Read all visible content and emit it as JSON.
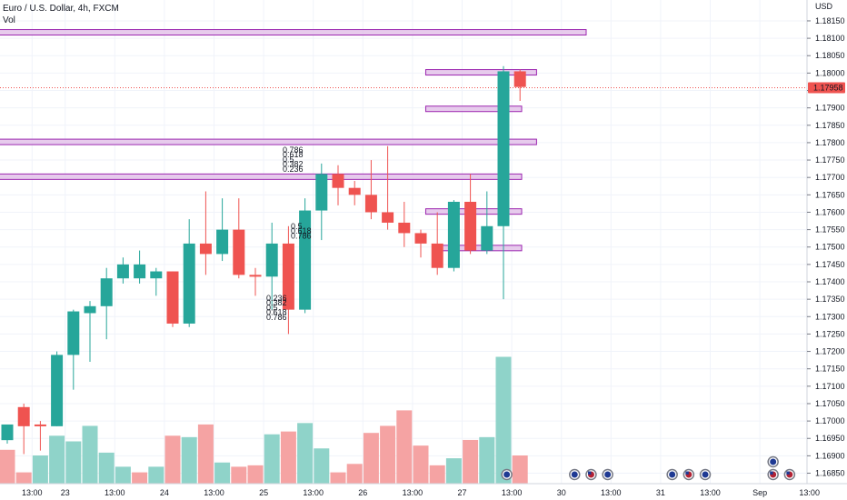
{
  "header": {
    "title": "Euro / U.S. Dollar, 4h, FXCM",
    "volume_label": "Vol"
  },
  "colors": {
    "up": "#26a69a",
    "down": "#ef5350",
    "vol_up": "#8fd3c9",
    "vol_down": "#f5a3a3",
    "zone_fill": "#e1bee7",
    "zone_stroke": "#9c27b0",
    "price_line": "#ef5350",
    "grid": "#f0f3fa",
    "label_bg": "#ef5350",
    "label_text": "#ffffff"
  },
  "chart_data": {
    "type": "candlestick",
    "symbol": "EURUSD",
    "timeframe": "4h",
    "source": "FXCM",
    "currency": "USD",
    "last_price": "1.17958",
    "ylim": [
      1.1682,
      1.1821
    ],
    "y_ticks": [
      "1.18150",
      "1.18100",
      "1.18050",
      "1.18000",
      "1.17950",
      "1.17900",
      "1.17850",
      "1.17800",
      "1.17750",
      "1.17700",
      "1.17650",
      "1.17600",
      "1.17550",
      "1.17500",
      "1.17450",
      "1.17400",
      "1.17350",
      "1.17300",
      "1.17250",
      "1.17200",
      "1.17150",
      "1.17100",
      "1.17050",
      "1.17000",
      "1.16950",
      "1.16900",
      "1.16850"
    ],
    "x_ticks": [
      {
        "label": "13:00",
        "i": 1.5
      },
      {
        "label": "23",
        "i": 3.5
      },
      {
        "label": "13:00",
        "i": 6.5
      },
      {
        "label": "24",
        "i": 9.5
      },
      {
        "label": "13:00",
        "i": 12.5
      },
      {
        "label": "25",
        "i": 15.5
      },
      {
        "label": "13:00",
        "i": 18.5
      },
      {
        "label": "26",
        "i": 21.5
      },
      {
        "label": "13:00",
        "i": 24.5
      },
      {
        "label": "27",
        "i": 27.5
      },
      {
        "label": "13:00",
        "i": 30.5
      },
      {
        "label": "30",
        "i": 33.5
      },
      {
        "label": "13:00",
        "i": 36.5
      },
      {
        "label": "31",
        "i": 39.5
      },
      {
        "label": "13:00",
        "i": 42.5
      },
      {
        "label": "Sep",
        "i": 45.5
      },
      {
        "label": "13:00",
        "i": 48.5
      }
    ],
    "candles": [
      {
        "o": 1.16945,
        "h": 1.16985,
        "l": 1.16935,
        "c": 1.1699
      },
      {
        "o": 1.1704,
        "h": 1.1705,
        "l": 1.16905,
        "c": 1.16985
      },
      {
        "o": 1.1699,
        "h": 1.17,
        "l": 1.16915,
        "c": 1.16985
      },
      {
        "o": 1.16985,
        "h": 1.172,
        "l": 1.16985,
        "c": 1.1719
      },
      {
        "o": 1.1719,
        "h": 1.1732,
        "l": 1.1709,
        "c": 1.17315
      },
      {
        "o": 1.1731,
        "h": 1.17345,
        "l": 1.1717,
        "c": 1.1733
      },
      {
        "o": 1.1733,
        "h": 1.1744,
        "l": 1.17235,
        "c": 1.1741
      },
      {
        "o": 1.1741,
        "h": 1.1747,
        "l": 1.17395,
        "c": 1.1745
      },
      {
        "o": 1.1741,
        "h": 1.1749,
        "l": 1.17395,
        "c": 1.1745
      },
      {
        "o": 1.1741,
        "h": 1.1744,
        "l": 1.1736,
        "c": 1.1743
      },
      {
        "o": 1.1743,
        "h": 1.1743,
        "l": 1.1727,
        "c": 1.1728
      },
      {
        "o": 1.1728,
        "h": 1.1758,
        "l": 1.1727,
        "c": 1.1751
      },
      {
        "o": 1.1751,
        "h": 1.1766,
        "l": 1.1742,
        "c": 1.1748
      },
      {
        "o": 1.1748,
        "h": 1.1764,
        "l": 1.1746,
        "c": 1.1755
      },
      {
        "o": 1.1755,
        "h": 1.1764,
        "l": 1.1741,
        "c": 1.1742
      },
      {
        "o": 1.1742,
        "h": 1.1744,
        "l": 1.1736,
        "c": 1.17415
      },
      {
        "o": 1.17415,
        "h": 1.1757,
        "l": 1.1732,
        "c": 1.1751
      },
      {
        "o": 1.1751,
        "h": 1.1756,
        "l": 1.1725,
        "c": 1.1732
      },
      {
        "o": 1.1732,
        "h": 1.1764,
        "l": 1.1731,
        "c": 1.17605
      },
      {
        "o": 1.17605,
        "h": 1.1774,
        "l": 1.1752,
        "c": 1.1771
      },
      {
        "o": 1.1771,
        "h": 1.17735,
        "l": 1.1762,
        "c": 1.1767
      },
      {
        "o": 1.1767,
        "h": 1.1769,
        "l": 1.1762,
        "c": 1.1765
      },
      {
        "o": 1.1765,
        "h": 1.1775,
        "l": 1.1758,
        "c": 1.176
      },
      {
        "o": 1.176,
        "h": 1.1779,
        "l": 1.1755,
        "c": 1.1757
      },
      {
        "o": 1.1757,
        "h": 1.1763,
        "l": 1.175,
        "c": 1.1754
      },
      {
        "o": 1.1754,
        "h": 1.1755,
        "l": 1.1747,
        "c": 1.1751
      },
      {
        "o": 1.1751,
        "h": 1.176,
        "l": 1.1742,
        "c": 1.1744
      },
      {
        "o": 1.1744,
        "h": 1.17635,
        "l": 1.1743,
        "c": 1.1763
      },
      {
        "o": 1.1763,
        "h": 1.1771,
        "l": 1.1748,
        "c": 1.1749
      },
      {
        "o": 1.1749,
        "h": 1.1766,
        "l": 1.1748,
        "c": 1.1756
      },
      {
        "o": 1.1756,
        "h": 1.1802,
        "l": 1.1735,
        "c": 1.18005
      },
      {
        "o": 1.18005,
        "h": 1.1801,
        "l": 1.1792,
        "c": 1.1796
      }
    ],
    "volumes": [
      {
        "v": 24,
        "up": false
      },
      {
        "v": 8,
        "up": false
      },
      {
        "v": 20,
        "up": true
      },
      {
        "v": 34,
        "up": true
      },
      {
        "v": 30,
        "up": true
      },
      {
        "v": 41,
        "up": true
      },
      {
        "v": 22,
        "up": true
      },
      {
        "v": 12,
        "up": true
      },
      {
        "v": 8,
        "up": false
      },
      {
        "v": 12,
        "up": true
      },
      {
        "v": 34,
        "up": false
      },
      {
        "v": 33,
        "up": true
      },
      {
        "v": 42,
        "up": false
      },
      {
        "v": 15,
        "up": true
      },
      {
        "v": 12,
        "up": false
      },
      {
        "v": 13,
        "up": false
      },
      {
        "v": 35,
        "up": true
      },
      {
        "v": 37,
        "up": false
      },
      {
        "v": 43,
        "up": true
      },
      {
        "v": 25,
        "up": true
      },
      {
        "v": 8,
        "up": false
      },
      {
        "v": 14,
        "up": false
      },
      {
        "v": 36,
        "up": false
      },
      {
        "v": 41,
        "up": false
      },
      {
        "v": 52,
        "up": false
      },
      {
        "v": 27,
        "up": false
      },
      {
        "v": 13,
        "up": false
      },
      {
        "v": 18,
        "up": true
      },
      {
        "v": 31,
        "up": false
      },
      {
        "v": 33,
        "up": true
      },
      {
        "v": 90,
        "up": true
      },
      {
        "v": 20,
        "up": false
      }
    ],
    "zones": [
      {
        "y1": 1.18125,
        "y2": 1.1811,
        "i_from": -0.5,
        "i_to": 35.0
      },
      {
        "y1": 1.1801,
        "y2": 1.17995,
        "i_from": 25.3,
        "i_to": 32.0
      },
      {
        "y1": 1.17905,
        "y2": 1.1789,
        "i_from": 25.3,
        "i_to": 31.1
      },
      {
        "y1": 1.1781,
        "y2": 1.17795,
        "i_from": -0.5,
        "i_to": 32.0
      },
      {
        "y1": 1.1771,
        "y2": 1.17695,
        "i_from": -0.5,
        "i_to": 31.1
      },
      {
        "y1": 1.1761,
        "y2": 1.17595,
        "i_from": 25.3,
        "i_to": 31.1
      },
      {
        "y1": 1.17505,
        "y2": 1.1749,
        "i_from": 26.3,
        "i_to": 31.1
      }
    ],
    "fib_labels_top": [
      "0.786",
      "0.618",
      "0.5",
      "0.382",
      "0.236"
    ],
    "fib_labels_bottom": [
      "0.236",
      "0.382",
      "0.5",
      "0.618",
      "0.786"
    ],
    "fib_labels_mid": [
      "0.5",
      "0.618",
      "0.786"
    ],
    "event_rows": [
      {
        "i": 30.2,
        "icons": [
          "eu"
        ]
      },
      {
        "i": 34.3,
        "icons": [
          "eu"
        ]
      },
      {
        "i": 35.3,
        "icons": [
          "us"
        ]
      },
      {
        "i": 36.3,
        "icons": [
          "eu"
        ]
      },
      {
        "i": 40.2,
        "icons": [
          "eu"
        ]
      },
      {
        "i": 41.2,
        "icons": [
          "us"
        ]
      },
      {
        "i": 42.2,
        "icons": [
          "eu"
        ]
      },
      {
        "i": 46.3,
        "icons": [
          "us",
          "eu"
        ]
      },
      {
        "i": 47.3,
        "icons": [
          "us"
        ]
      }
    ]
  }
}
